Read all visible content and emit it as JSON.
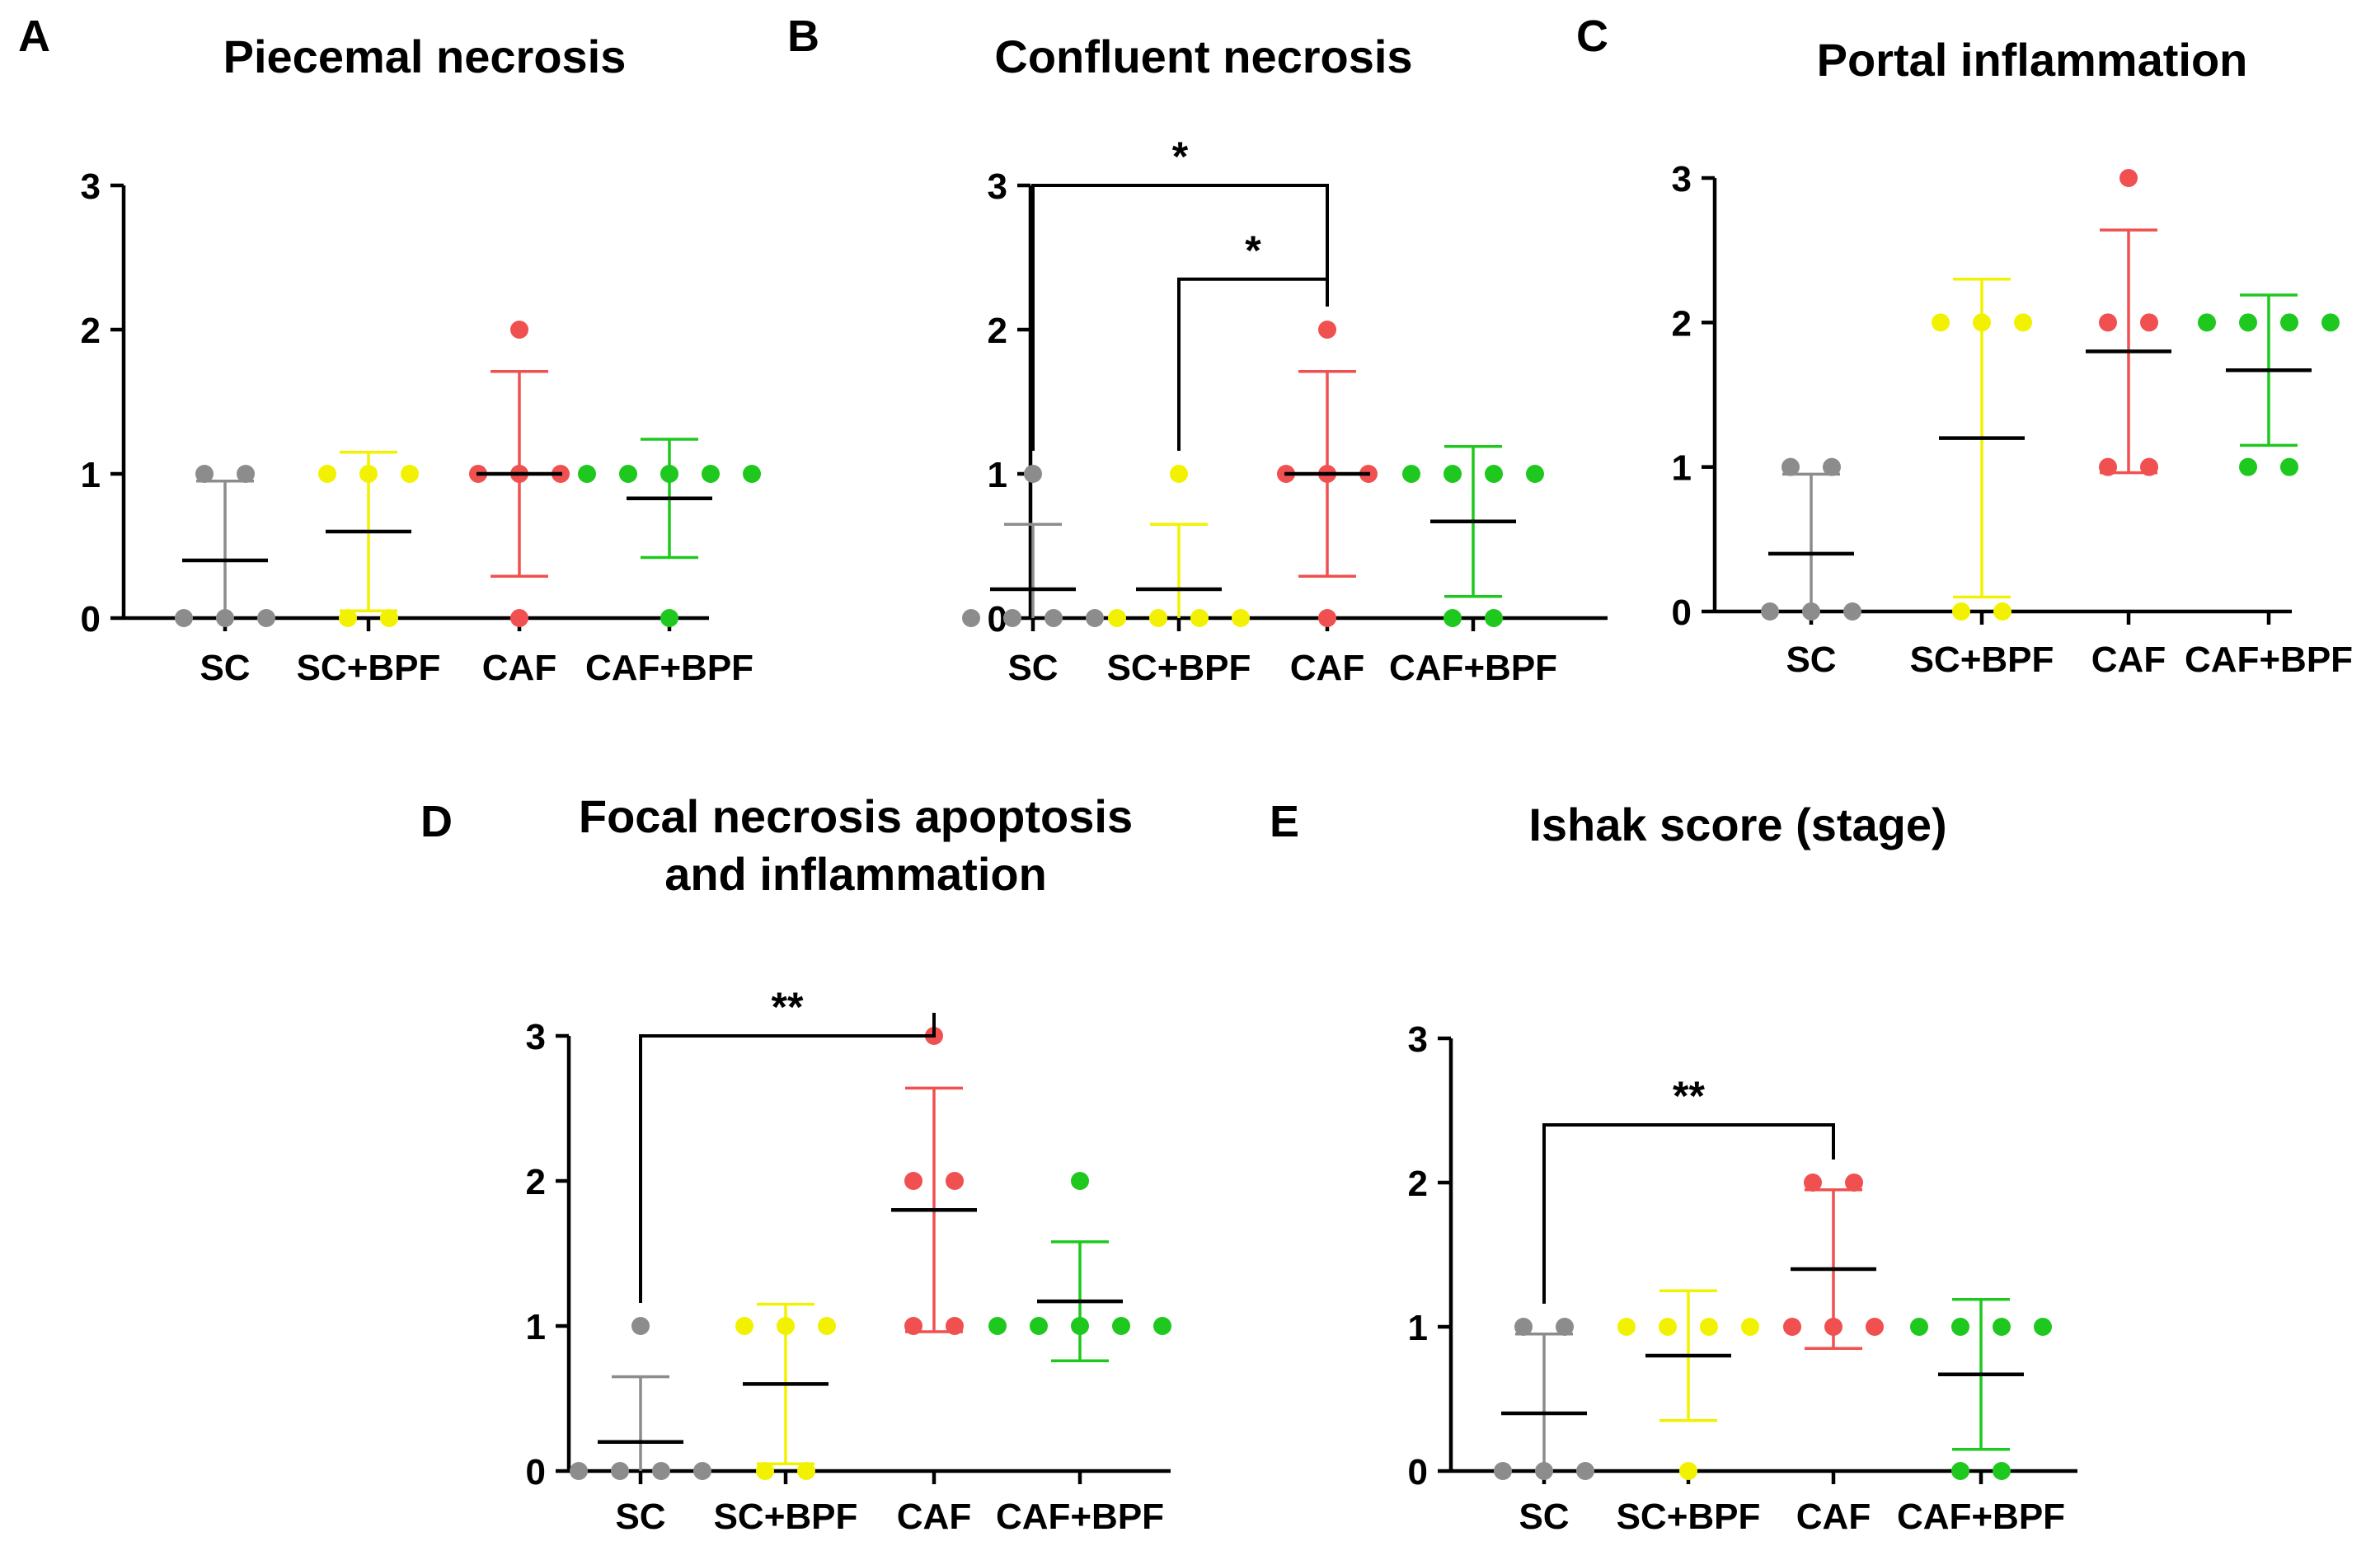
{
  "colors": {
    "SC": "#8c8c8c",
    "SC+BPF": "#f2f200",
    "CAF": "#f05050",
    "CAF+BPF": "#1ec81e",
    "axis": "#000000"
  },
  "chart_data": [
    {
      "letter": "A",
      "type": "scatter",
      "title": [
        "Piecemal necrosis"
      ],
      "xlabel": "",
      "ylabel": "",
      "ylim": [
        0,
        3
      ],
      "yticks": [
        "0",
        "1",
        "2",
        "3"
      ],
      "categories": [
        "SC",
        "SC+BPF",
        "CAF",
        "CAF+BPF"
      ],
      "series": [
        {
          "name": "SC",
          "points": [
            0,
            0,
            0,
            1,
            1
          ],
          "mean": 0.4,
          "sd": 0.55
        },
        {
          "name": "SC+BPF",
          "points": [
            0,
            0,
            1,
            1,
            1
          ],
          "mean": 0.6,
          "sd": 0.55
        },
        {
          "name": "CAF",
          "points": [
            0,
            1,
            1,
            1,
            2
          ],
          "mean": 1.0,
          "sd": 0.71
        },
        {
          "name": "CAF+BPF",
          "points": [
            0,
            1,
            1,
            1,
            1,
            1
          ],
          "mean": 0.83,
          "sd": 0.41
        }
      ],
      "significance": []
    },
    {
      "letter": "B",
      "type": "scatter",
      "title": [
        "Confluent necrosis"
      ],
      "xlabel": "",
      "ylabel": "",
      "ylim": [
        0,
        3
      ],
      "yticks": [
        "0",
        "1",
        "2",
        "3"
      ],
      "categories": [
        "SC",
        "SC+BPF",
        "CAF",
        "CAF+BPF"
      ],
      "series": [
        {
          "name": "SC",
          "points": [
            0,
            0,
            0,
            0,
            1
          ],
          "mean": 0.2,
          "sd": 0.45
        },
        {
          "name": "SC+BPF",
          "points": [
            0,
            0,
            0,
            0,
            1
          ],
          "mean": 0.2,
          "sd": 0.45
        },
        {
          "name": "CAF",
          "points": [
            0,
            1,
            1,
            1,
            2
          ],
          "mean": 1.0,
          "sd": 0.71
        },
        {
          "name": "CAF+BPF",
          "points": [
            0,
            0,
            1,
            1,
            1,
            1
          ],
          "mean": 0.67,
          "sd": 0.52
        }
      ],
      "significance": [
        {
          "from": "SC",
          "to": "CAF",
          "label": "*",
          "y": 3.0
        },
        {
          "from": "SC+BPF",
          "to": "CAF",
          "label": "*",
          "y": 2.35
        }
      ]
    },
    {
      "letter": "C",
      "type": "scatter",
      "title": [
        "Portal inflammation"
      ],
      "xlabel": "",
      "ylabel": "",
      "ylim": [
        0,
        3
      ],
      "yticks": [
        "0",
        "1",
        "2",
        "3"
      ],
      "categories": [
        "SC",
        "SC+BPF",
        "CAF",
        "CAF+BPF"
      ],
      "series": [
        {
          "name": "SC",
          "points": [
            0,
            0,
            0,
            1,
            1
          ],
          "mean": 0.4,
          "sd": 0.55
        },
        {
          "name": "SC+BPF",
          "points": [
            0,
            0,
            2,
            2,
            2
          ],
          "mean": 1.2,
          "sd": 1.1
        },
        {
          "name": "CAF",
          "points": [
            1,
            1,
            2,
            2,
            3
          ],
          "mean": 1.8,
          "sd": 0.84
        },
        {
          "name": "CAF+BPF",
          "points": [
            1,
            1,
            2,
            2,
            2,
            2
          ],
          "mean": 1.67,
          "sd": 0.52
        }
      ],
      "significance": []
    },
    {
      "letter": "D",
      "type": "scatter",
      "title": [
        "Focal necrosis apoptosis",
        "and inflammation"
      ],
      "xlabel": "",
      "ylabel": "",
      "ylim": [
        0,
        3
      ],
      "yticks": [
        "0",
        "1",
        "2",
        "3"
      ],
      "categories": [
        "SC",
        "SC+BPF",
        "CAF",
        "CAF+BPF"
      ],
      "series": [
        {
          "name": "SC",
          "points": [
            0,
            0,
            0,
            0,
            1
          ],
          "mean": 0.2,
          "sd": 0.45
        },
        {
          "name": "SC+BPF",
          "points": [
            0,
            0,
            1,
            1,
            1
          ],
          "mean": 0.6,
          "sd": 0.55
        },
        {
          "name": "CAF",
          "points": [
            1,
            1,
            2,
            2,
            3
          ],
          "mean": 1.8,
          "sd": 0.84
        },
        {
          "name": "CAF+BPF",
          "points": [
            1,
            1,
            1,
            1,
            1,
            2
          ],
          "mean": 1.17,
          "sd": 0.41
        }
      ],
      "significance": [
        {
          "from": "SC",
          "to": "CAF",
          "label": "**",
          "y": 3.0
        }
      ]
    },
    {
      "letter": "E",
      "type": "scatter",
      "title": [
        "Ishak score (stage)"
      ],
      "xlabel": "",
      "ylabel": "",
      "ylim": [
        0,
        3
      ],
      "yticks": [
        "0",
        "1",
        "2",
        "3"
      ],
      "categories": [
        "SC",
        "SC+BPF",
        "CAF",
        "CAF+BPF"
      ],
      "series": [
        {
          "name": "SC",
          "points": [
            0,
            0,
            0,
            1,
            1
          ],
          "mean": 0.4,
          "sd": 0.55
        },
        {
          "name": "SC+BPF",
          "points": [
            0,
            1,
            1,
            1,
            1
          ],
          "mean": 0.8,
          "sd": 0.45
        },
        {
          "name": "CAF",
          "points": [
            1,
            1,
            1,
            2,
            2
          ],
          "mean": 1.4,
          "sd": 0.55
        },
        {
          "name": "CAF+BPF",
          "points": [
            0,
            0,
            1,
            1,
            1,
            1
          ],
          "mean": 0.67,
          "sd": 0.52
        }
      ],
      "significance": [
        {
          "from": "SC",
          "to": "CAF",
          "label": "**",
          "y": 2.4
        }
      ]
    }
  ]
}
